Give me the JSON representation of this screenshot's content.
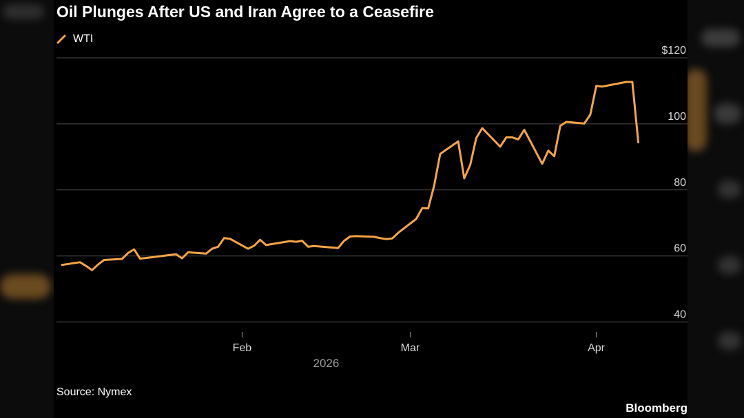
{
  "chart_data": {
    "type": "line",
    "title": "Oil Plunges After US and Iran Agree to a Ceasefire",
    "legend": [
      "WTI"
    ],
    "series": [
      {
        "name": "WTI",
        "color": "#f6a545",
        "x": [
          "2026-01-02",
          "2026-01-05",
          "2026-01-06",
          "2026-01-07",
          "2026-01-08",
          "2026-01-09",
          "2026-01-12",
          "2026-01-13",
          "2026-01-14",
          "2026-01-15",
          "2026-01-16",
          "2026-01-20",
          "2026-01-21",
          "2026-01-22",
          "2026-01-23",
          "2026-01-26",
          "2026-01-27",
          "2026-01-28",
          "2026-01-29",
          "2026-01-30",
          "2026-02-02",
          "2026-02-03",
          "2026-02-04",
          "2026-02-05",
          "2026-02-06",
          "2026-02-09",
          "2026-02-10",
          "2026-02-11",
          "2026-02-12",
          "2026-02-13",
          "2026-02-17",
          "2026-02-18",
          "2026-02-19",
          "2026-02-20",
          "2026-02-23",
          "2026-02-24",
          "2026-02-25",
          "2026-02-26",
          "2026-02-27",
          "2026-03-02",
          "2026-03-03",
          "2026-03-04",
          "2026-03-05",
          "2026-03-06",
          "2026-03-09",
          "2026-03-10",
          "2026-03-11",
          "2026-03-12",
          "2026-03-13",
          "2026-03-16",
          "2026-03-17",
          "2026-03-18",
          "2026-03-19",
          "2026-03-20",
          "2026-03-23",
          "2026-03-24",
          "2026-03-25",
          "2026-03-26",
          "2026-03-27",
          "2026-03-30",
          "2026-03-31",
          "2026-04-01",
          "2026-04-02",
          "2026-04-06",
          "2026-04-07",
          "2026-04-08"
        ],
        "values": [
          57.3,
          58.1,
          57.0,
          55.7,
          57.4,
          58.8,
          59.1,
          60.9,
          62.0,
          59.2,
          59.4,
          60.3,
          60.5,
          59.3,
          61.1,
          60.7,
          62.2,
          62.8,
          65.4,
          65.2,
          62.2,
          63.1,
          64.9,
          63.3,
          63.6,
          64.5,
          64.3,
          64.6,
          62.8,
          63.0,
          62.4,
          64.6,
          65.9,
          66.0,
          65.8,
          65.4,
          65.1,
          65.3,
          67.0,
          71.2,
          74.5,
          74.4,
          81.4,
          90.9,
          94.7,
          83.5,
          87.6,
          95.7,
          98.7,
          93.1,
          95.9,
          95.9,
          95.3,
          98.2,
          87.9,
          91.9,
          90.2,
          99.4,
          100.6,
          100.1,
          102.8,
          111.5,
          111.3,
          112.7,
          112.7,
          94.4
        ]
      }
    ],
    "y_ticks": [
      40,
      60,
      80,
      100,
      120
    ],
    "y_tick_labels": [
      "40",
      "60",
      "80",
      "100",
      "$120"
    ],
    "ylim": [
      37,
      125
    ],
    "x_ticks": [
      {
        "label": "Feb",
        "date": "2026-02-01"
      },
      {
        "label": "Mar",
        "date": "2026-03-01"
      },
      {
        "label": "Apr",
        "date": "2026-04-01"
      }
    ],
    "xlim": [
      "2026-01-02",
      "2026-04-10"
    ],
    "year_label": "2026",
    "grid": true,
    "legend_position": "top-left"
  },
  "source": "Source: Nymex",
  "brand": "Bloomberg"
}
